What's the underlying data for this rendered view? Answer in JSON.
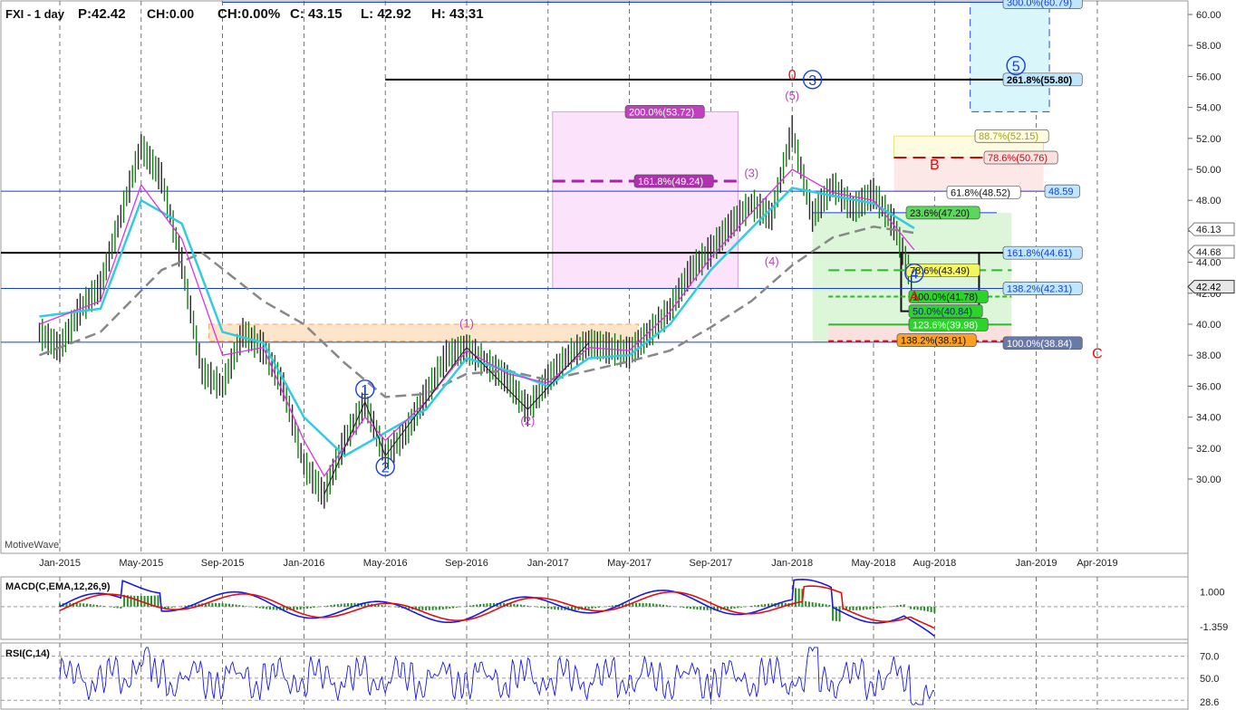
{
  "header": {
    "symbol": "FXI - 1 day",
    "price": "P:42.42",
    "change": "CH:0.00",
    "change_pct": "CH:0.00%",
    "close": "C: 43.15",
    "low": "L: 42.92",
    "high": "H: 43.31"
  },
  "watermark": "MotiveWave",
  "colors": {
    "price_bar": "#1a7a1a",
    "ema_fast": "#dd33dd",
    "ema_slow": "#33ccdd",
    "ma_long": "#888888",
    "wave_label": "#1a3fd6",
    "wave_minor": "#bb44bb",
    "abc_label": "#e01010",
    "macd": "#1a1ae0",
    "macd_signal": "#e01010",
    "histogram": "#2d8a2d",
    "rsi": "#1a1ae0"
  },
  "chart_data": [
    {
      "type": "line",
      "name": "price_panel",
      "x_tick_labels": [
        "Jan-2015",
        "May-2015",
        "Sep-2015",
        "Jan-2016",
        "May-2016",
        "Sep-2016",
        "Jan-2017",
        "May-2017",
        "Sep-2017",
        "Jan-2018",
        "May-2018",
        "Aug-2018",
        "Jan-2019",
        "Apr-2019"
      ],
      "y_tick_labels": [
        "60.00",
        "58.00",
        "56.00",
        "54.00",
        "52.00",
        "50.00",
        "48.00",
        "46.00",
        "44.00",
        "42.00",
        "40.00",
        "38.00",
        "36.00",
        "34.00",
        "32.00",
        "30.00"
      ],
      "ylim": [
        27.5,
        61.2
      ],
      "current_price_label": "42.42",
      "right_axis_markers": [
        "46.13",
        "44.68"
      ],
      "price_path": [
        {
          "x": "Dec-2014",
          "y": 39.5
        },
        {
          "x": "Jan-2015",
          "y": 38.5
        },
        {
          "x": "Feb-2015",
          "y": 41.0
        },
        {
          "x": "Mar-2015",
          "y": 42.5
        },
        {
          "x": "Apr-2015",
          "y": 47.0
        },
        {
          "x": "May-2015",
          "y": 51.5
        },
        {
          "x": "Jun-2015",
          "y": 49.5
        },
        {
          "x": "Jul-2015",
          "y": 44.0
        },
        {
          "x": "Aug-2015",
          "y": 37.0
        },
        {
          "x": "Sep-2015",
          "y": 36.0
        },
        {
          "x": "Oct-2015",
          "y": 39.5
        },
        {
          "x": "Nov-2015",
          "y": 38.5
        },
        {
          "x": "Dec-2015",
          "y": 36.0
        },
        {
          "x": "Jan-2016",
          "y": 31.0
        },
        {
          "x": "Feb-2016",
          "y": 29.0
        },
        {
          "x": "Mar-2016",
          "y": 32.5
        },
        {
          "x": "Apr-2016",
          "y": 35.0
        },
        {
          "x": "May-2016",
          "y": 31.5
        },
        {
          "x": "Jun-2016",
          "y": 33.0
        },
        {
          "x": "Jul-2016",
          "y": 35.5
        },
        {
          "x": "Aug-2016",
          "y": 38.0
        },
        {
          "x": "Sep-2016",
          "y": 38.5
        },
        {
          "x": "Oct-2016",
          "y": 37.5
        },
        {
          "x": "Nov-2016",
          "y": 36.5
        },
        {
          "x": "Dec-2016",
          "y": 34.5
        },
        {
          "x": "Jan-2017",
          "y": 36.5
        },
        {
          "x": "Feb-2017",
          "y": 38.0
        },
        {
          "x": "Mar-2017",
          "y": 38.8
        },
        {
          "x": "Apr-2017",
          "y": 38.5
        },
        {
          "x": "May-2017",
          "y": 38.2
        },
        {
          "x": "Jun-2017",
          "y": 39.5
        },
        {
          "x": "Jul-2017",
          "y": 41.0
        },
        {
          "x": "Aug-2017",
          "y": 43.5
        },
        {
          "x": "Sep-2017",
          "y": 44.8
        },
        {
          "x": "Oct-2017",
          "y": 46.5
        },
        {
          "x": "Nov-2017",
          "y": 47.8
        },
        {
          "x": "Dec-2017",
          "y": 47.0
        },
        {
          "x": "Jan-2018",
          "y": 52.5
        },
        {
          "x": "Feb-2018",
          "y": 47.0
        },
        {
          "x": "Mar-2018",
          "y": 49.0
        },
        {
          "x": "Apr-2018",
          "y": 47.5
        },
        {
          "x": "May-2018",
          "y": 48.5
        },
        {
          "x": "Jun-2018",
          "y": 46.5
        },
        {
          "x": "Jul-2018",
          "y": 42.42
        }
      ],
      "ema_fast_path": [
        {
          "x": "Dec-2014",
          "y": 40.0
        },
        {
          "x": "Mar-2015",
          "y": 41.5
        },
        {
          "x": "May-2015",
          "y": 49.0
        },
        {
          "x": "Jul-2015",
          "y": 45.5
        },
        {
          "x": "Sep-2015",
          "y": 38.0
        },
        {
          "x": "Nov-2015",
          "y": 38.5
        },
        {
          "x": "Jan-2016",
          "y": 32.5
        },
        {
          "x": "Feb-2016",
          "y": 30.2
        },
        {
          "x": "Apr-2016",
          "y": 34.0
        },
        {
          "x": "May-2016",
          "y": 32.5
        },
        {
          "x": "Jul-2016",
          "y": 35.0
        },
        {
          "x": "Sep-2016",
          "y": 38.3
        },
        {
          "x": "Nov-2016",
          "y": 36.8
        },
        {
          "x": "Jan-2017",
          "y": 36.2
        },
        {
          "x": "Mar-2017",
          "y": 38.5
        },
        {
          "x": "May-2017",
          "y": 38.3
        },
        {
          "x": "Jul-2017",
          "y": 40.8
        },
        {
          "x": "Sep-2017",
          "y": 44.3
        },
        {
          "x": "Nov-2017",
          "y": 47.2
        },
        {
          "x": "Jan-2018",
          "y": 50.0
        },
        {
          "x": "Mar-2018",
          "y": 48.5
        },
        {
          "x": "May-2018",
          "y": 48.0
        },
        {
          "x": "Jul-2018",
          "y": 44.8
        }
      ],
      "ema_slow_path": [
        {
          "x": "Dec-2014",
          "y": 40.5
        },
        {
          "x": "Mar-2015",
          "y": 41.0
        },
        {
          "x": "May-2015",
          "y": 48.0
        },
        {
          "x": "Jul-2015",
          "y": 46.5
        },
        {
          "x": "Sep-2015",
          "y": 39.5
        },
        {
          "x": "Nov-2015",
          "y": 38.8
        },
        {
          "x": "Jan-2016",
          "y": 34.0
        },
        {
          "x": "Mar-2016",
          "y": 31.5
        },
        {
          "x": "May-2016",
          "y": 33.0
        },
        {
          "x": "Jul-2016",
          "y": 34.5
        },
        {
          "x": "Sep-2016",
          "y": 37.8
        },
        {
          "x": "Nov-2016",
          "y": 37.0
        },
        {
          "x": "Jan-2017",
          "y": 36.0
        },
        {
          "x": "Mar-2017",
          "y": 37.8
        },
        {
          "x": "May-2017",
          "y": 38.0
        },
        {
          "x": "Jul-2017",
          "y": 40.0
        },
        {
          "x": "Sep-2017",
          "y": 43.5
        },
        {
          "x": "Nov-2017",
          "y": 46.2
        },
        {
          "x": "Jan-2018",
          "y": 48.8
        },
        {
          "x": "Mar-2018",
          "y": 48.3
        },
        {
          "x": "May-2018",
          "y": 47.8
        },
        {
          "x": "Jul-2018",
          "y": 46.2
        }
      ],
      "ma_long_path": [
        {
          "x": "Dec-2014",
          "y": 38.0
        },
        {
          "x": "Mar-2015",
          "y": 39.5
        },
        {
          "x": "Jun-2015",
          "y": 43.5
        },
        {
          "x": "Aug-2015",
          "y": 44.6
        },
        {
          "x": "Nov-2015",
          "y": 41.5
        },
        {
          "x": "Jan-2016",
          "y": 40.0
        },
        {
          "x": "Mar-2016",
          "y": 37.5
        },
        {
          "x": "May-2016",
          "y": 35.3
        },
        {
          "x": "Jul-2016",
          "y": 35.5
        },
        {
          "x": "Sep-2016",
          "y": 36.8
        },
        {
          "x": "Nov-2016",
          "y": 37.0
        },
        {
          "x": "Jan-2017",
          "y": 36.4
        },
        {
          "x": "Mar-2017",
          "y": 37.0
        },
        {
          "x": "May-2017",
          "y": 37.6
        },
        {
          "x": "Jul-2017",
          "y": 38.3
        },
        {
          "x": "Sep-2017",
          "y": 39.8
        },
        {
          "x": "Nov-2017",
          "y": 41.5
        },
        {
          "x": "Jan-2018",
          "y": 43.8
        },
        {
          "x": "Mar-2018",
          "y": 45.6
        },
        {
          "x": "May-2018",
          "y": 46.3
        },
        {
          "x": "Jul-2018",
          "y": 45.9
        }
      ],
      "fib_labels": [
        {
          "text": "300.0%(60.79)",
          "y": 60.79
        },
        {
          "text": "261.8%(55.80)",
          "y": 55.8
        },
        {
          "text": "200.0%(53.72)",
          "y": 53.72
        },
        {
          "text": "88.7%(52.15)",
          "y": 52.15
        },
        {
          "text": "78.6%(50.76)",
          "y": 50.76
        },
        {
          "text": "161.8%(49.24)",
          "y": 49.24
        },
        {
          "text": "61.8%(48.52)",
          "y": 48.52
        },
        {
          "text": "48.59",
          "y": 48.59
        },
        {
          "text": "23.6%(47.20)",
          "y": 47.2
        },
        {
          "text": "161.8%(44.61)",
          "y": 44.61
        },
        {
          "text": "78.6%(43.49)",
          "y": 43.49
        },
        {
          "text": "138.2%(42.31)",
          "y": 42.31
        },
        {
          "text": "100.0%(41.78)",
          "y": 41.78
        },
        {
          "text": "50.0%(40.84)",
          "y": 40.84
        },
        {
          "text": "123.6%(39.98)",
          "y": 39.98
        },
        {
          "text": "138.2%(38.91)",
          "y": 38.91
        },
        {
          "text": "100.0%(38.84)",
          "y": 38.84
        }
      ],
      "wave_labels": [
        {
          "text": "1",
          "date": "Apr-2016",
          "y": 35.8
        },
        {
          "text": "2",
          "date": "May-2016",
          "y": 30.8
        },
        {
          "text": "3",
          "date": "Feb-2018",
          "y": 55.8
        },
        {
          "text": "4",
          "date": "Jul-2018",
          "y": 43.3
        },
        {
          "text": "5",
          "date": "Dec-2018",
          "y": 56.7
        }
      ],
      "minor_labels": [
        {
          "text": "(1)",
          "date": "Sep-2016",
          "y": 39.8
        },
        {
          "text": "(2)",
          "date": "Dec-2016",
          "y": 33.5
        },
        {
          "text": "(3)",
          "date": "Nov-2017",
          "y": 49.5
        },
        {
          "text": "(4)",
          "date": "Dec-2017",
          "y": 43.8
        },
        {
          "text": "(5)",
          "date": "Jan-2018",
          "y": 54.5
        }
      ],
      "abc_labels": [
        {
          "text": "0",
          "date": "Jan-2018",
          "y": 55.8
        },
        {
          "text": "A",
          "date": "Jul-2018",
          "y": 41.5
        },
        {
          "text": "B",
          "date": "Aug-2018",
          "y": 50.0
        },
        {
          "text": "C",
          "date": "Apr-2019",
          "y": 37.8
        }
      ]
    },
    {
      "type": "line",
      "name": "macd_panel",
      "title": "MACD(C,EMA,12,26,9)",
      "y_tick_labels": [
        "1.000",
        "-1.359"
      ],
      "ylim": [
        -2.2,
        2.0
      ]
    },
    {
      "type": "line",
      "name": "rsi_panel",
      "title": "RSI(C,14)",
      "y_tick_labels": [
        "70.0",
        "50.0",
        "28.6"
      ],
      "ylim": [
        22,
        82
      ]
    }
  ]
}
